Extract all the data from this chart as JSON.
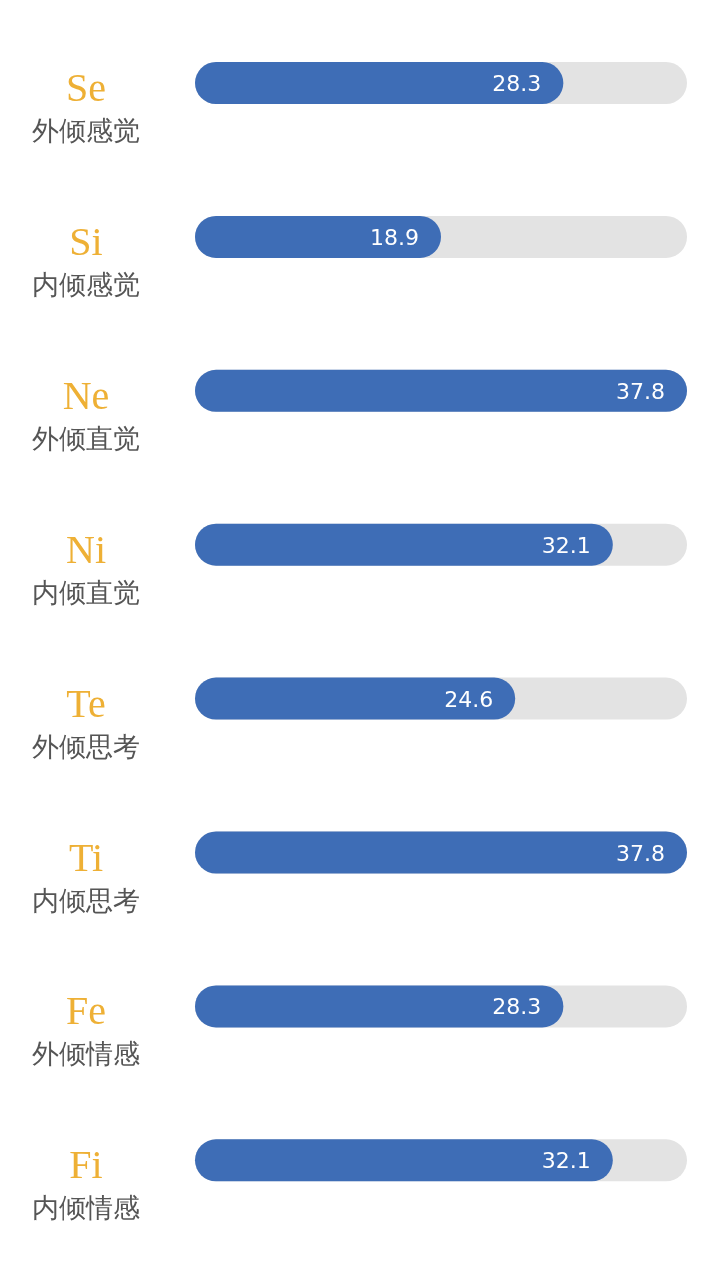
{
  "chart_data": {
    "type": "bar",
    "orientation": "horizontal",
    "categories": [
      "Se\n外倾感觉",
      "Si\n内倾感觉",
      "Ne\n外倾直觉",
      "Ni\n内倾直觉",
      "Te\n外倾思考",
      "Ti\n内倾思考",
      "Fe\n外倾情感",
      "Fi\n内倾情感"
    ],
    "values": [
      28.3,
      18.9,
      37.8,
      32.1,
      24.6,
      37.8,
      28.3,
      32.1
    ],
    "color": "#3e6db6",
    "xlim": [
      0,
      37.8
    ],
    "data_labels": true,
    "tick_labels": "y"
  }
}
